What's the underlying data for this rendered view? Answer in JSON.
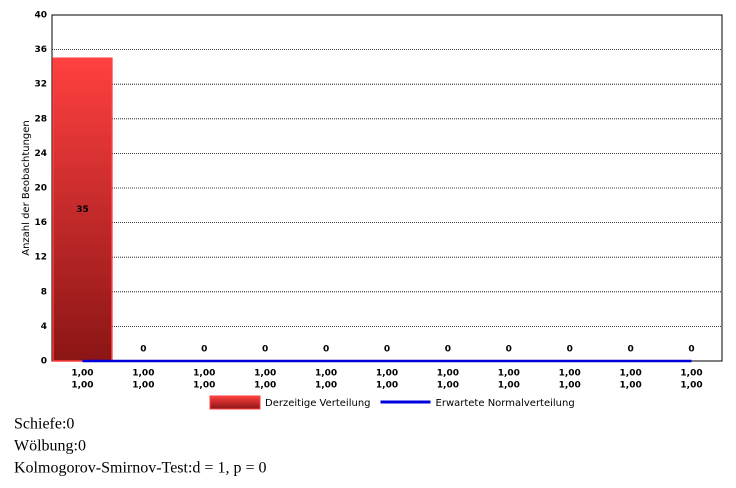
{
  "chart_data": {
    "type": "bar",
    "y_label": "Anzahl der Beobachtungen",
    "categories": [
      [
        "1,00",
        "1,00"
      ],
      [
        "1,00",
        "1,00"
      ],
      [
        "1,00",
        "1,00"
      ],
      [
        "1,00",
        "1,00"
      ],
      [
        "1,00",
        "1,00"
      ],
      [
        "1,00",
        "1,00"
      ],
      [
        "1,00",
        "1,00"
      ],
      [
        "1,00",
        "1,00"
      ],
      [
        "1,00",
        "1,00"
      ],
      [
        "1,00",
        "1,00"
      ],
      [
        "1,00",
        "1,00"
      ]
    ],
    "series": [
      {
        "name": "Derzeitige Verteilung",
        "type": "bar",
        "color": "#ff4040",
        "values": [
          35,
          0,
          0,
          0,
          0,
          0,
          0,
          0,
          0,
          0,
          0
        ]
      },
      {
        "name": "Erwartete Normalverteilung",
        "type": "line",
        "color": "#0000dd",
        "values": [
          0,
          0,
          0,
          0,
          0,
          0,
          0,
          0,
          0,
          0,
          0
        ]
      }
    ],
    "ylim": [
      0,
      40
    ],
    "yticks": [
      0,
      4,
      8,
      12,
      16,
      20,
      24,
      28,
      32,
      36,
      40
    ],
    "grid": true,
    "legend": "bottom"
  },
  "notes": [
    "Schiefe:0",
    "Wölbung:0",
    "Kolmogorov-Smirnov-Test:d = 1, p = 0"
  ]
}
